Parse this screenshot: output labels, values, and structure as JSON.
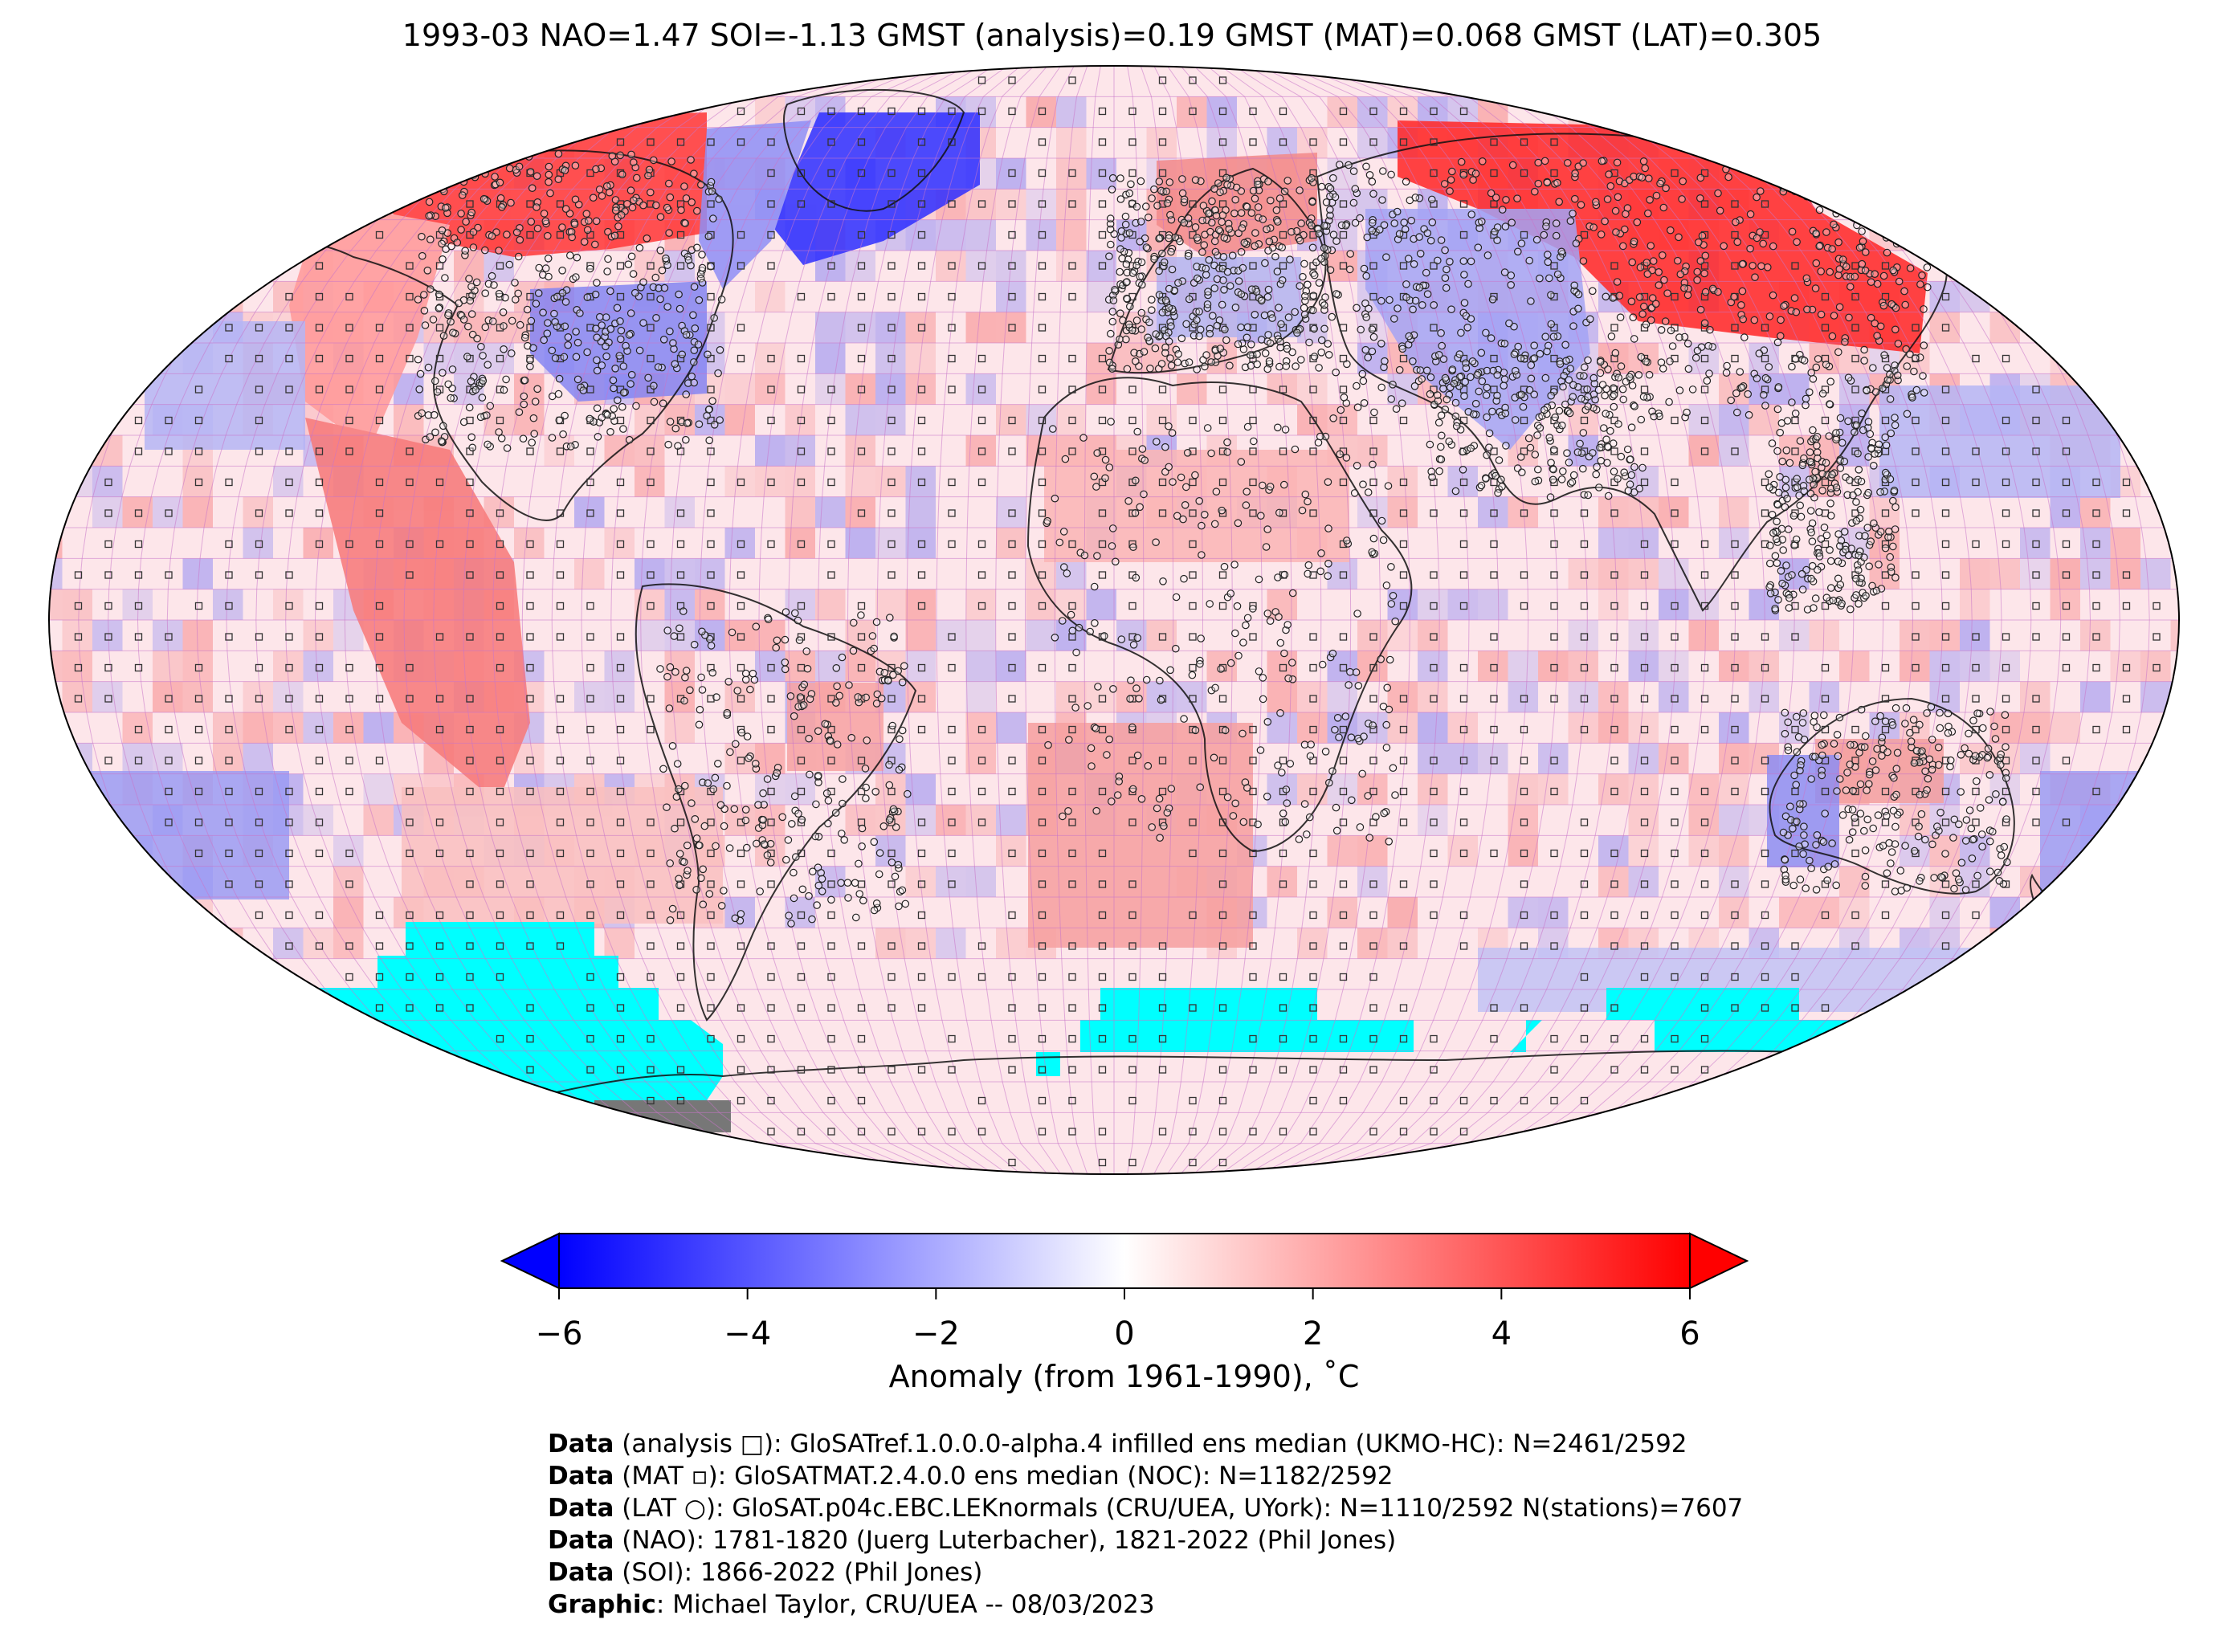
{
  "title": "1993-03 NAO=1.47 SOI=-1.13 GMST (analysis)=0.19 GMST (MAT)=0.068 GMST (LAT)=0.305",
  "colorbar": {
    "ticks": [
      "−6",
      "−4",
      "−2",
      "0",
      "2",
      "4",
      "6"
    ],
    "tick_values": [
      -6,
      -4,
      -2,
      0,
      2,
      4,
      6
    ],
    "label": "Anomaly (from 1961-1990), ˚C",
    "min": -6,
    "max": 6,
    "colors": {
      "cold": "#0000ff",
      "neutral": "#ffffff",
      "warm": "#ff0000",
      "missing": "#00ffff",
      "no_data": "#777777"
    }
  },
  "credits": [
    {
      "bold": "Data",
      "text": " (analysis □): GloSATref.1.0.0.0-alpha.4 infilled ens median (UKMO-HC): N=2461/2592"
    },
    {
      "bold": "Data",
      "text": " (MAT ▫): GloSATMAT.2.4.0.0 ens median (NOC): N=1182/2592"
    },
    {
      "bold": "Data",
      "text": " (LAT ○): GloSAT.p04c.EBC.LEKnormals (CRU/UEA, UYork): N=1110/2592 N(stations)=7607"
    },
    {
      "bold": "Data",
      "text": " (NAO): 1781-1820 (Juerg Luterbacher), 1821-2022 (Phil Jones)"
    },
    {
      "bold": "Data",
      "text": " (SOI): 1866-2022 (Phil Jones)"
    },
    {
      "bold": "Graphic",
      "text": ": Michael Taylor, CRU/UEA -- 08/03/2023"
    }
  ]
}
